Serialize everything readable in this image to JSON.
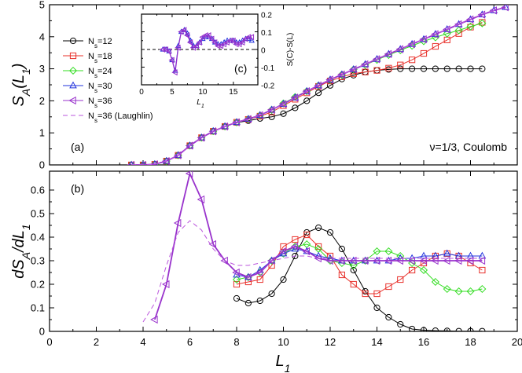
{
  "chart_data": [
    {
      "id": "a",
      "type": "line",
      "panel_label": "(a)",
      "annotation": "ν=1/3, Coulomb",
      "ylabel": "S_A(L_1)",
      "xlim": [
        0,
        20
      ],
      "ylim": [
        0,
        5
      ],
      "xticks": [
        0,
        2,
        4,
        6,
        8,
        10,
        12,
        14,
        16,
        18,
        20
      ],
      "yticks": [
        0,
        1,
        2,
        3,
        4,
        5
      ],
      "legend_position": "top-left",
      "series": [
        {
          "name": "Ns=12",
          "label_main": "N",
          "label_sub": "s",
          "label_tail": "=12",
          "color": "#000000",
          "marker": "circle",
          "x": [
            3.5,
            4,
            4.5,
            5,
            5.5,
            6,
            6.5,
            7,
            7.5,
            8,
            8.5,
            9,
            9.5,
            10,
            10.5,
            11,
            11.5,
            12,
            12.5,
            13,
            13.5,
            14,
            14.5,
            15,
            15.5,
            16,
            16.5,
            17,
            17.5,
            18,
            18.5
          ],
          "y": [
            0,
            0,
            0.02,
            0.12,
            0.3,
            0.6,
            0.85,
            1.05,
            1.2,
            1.32,
            1.38,
            1.45,
            1.5,
            1.6,
            1.78,
            2.0,
            2.25,
            2.48,
            2.68,
            2.8,
            2.9,
            2.95,
            2.98,
            3.0,
            3.0,
            3.0,
            3.0,
            3.0,
            3.0,
            3.0,
            3.0
          ]
        },
        {
          "name": "Ns=18",
          "label_main": "N",
          "label_sub": "s",
          "label_tail": "=18",
          "color": "#e8302a",
          "marker": "square",
          "x": [
            3.5,
            4,
            4.5,
            5,
            5.5,
            6,
            6.5,
            7,
            7.5,
            8,
            8.5,
            9,
            9.5,
            10,
            10.5,
            11,
            11.5,
            12,
            12.5,
            13,
            13.5,
            14,
            14.5,
            15,
            15.5,
            16,
            16.5,
            17,
            17.5,
            18,
            18.5
          ],
          "y": [
            0,
            0,
            0.02,
            0.12,
            0.3,
            0.6,
            0.85,
            1.05,
            1.2,
            1.33,
            1.42,
            1.52,
            1.65,
            1.85,
            2.05,
            2.25,
            2.45,
            2.62,
            2.75,
            2.85,
            2.9,
            2.95,
            3.02,
            3.12,
            3.28,
            3.48,
            3.7,
            3.9,
            4.1,
            4.3,
            4.45
          ]
        },
        {
          "name": "Ns=24",
          "label_main": "N",
          "label_sub": "s",
          "label_tail": "=24",
          "color": "#33dd22",
          "marker": "diamond",
          "x": [
            3.5,
            4,
            4.5,
            5,
            5.5,
            6,
            6.5,
            7,
            7.5,
            8,
            8.5,
            9,
            9.5,
            10,
            10.5,
            11,
            11.5,
            12,
            12.5,
            13,
            13.5,
            14,
            14.5,
            15,
            15.5,
            16,
            16.5,
            17,
            17.5,
            18,
            18.5
          ],
          "y": [
            0,
            0,
            0.02,
            0.12,
            0.3,
            0.6,
            0.85,
            1.05,
            1.2,
            1.33,
            1.43,
            1.55,
            1.72,
            1.92,
            2.12,
            2.3,
            2.48,
            2.65,
            2.82,
            2.98,
            3.12,
            3.28,
            3.43,
            3.58,
            3.72,
            3.86,
            3.98,
            4.1,
            4.2,
            4.32,
            4.42
          ]
        },
        {
          "name": "Ns=30",
          "label_main": "N",
          "label_sub": "s",
          "label_tail": "=30",
          "color": "#2233dd",
          "marker": "triangle-up",
          "x": [
            3.5,
            4,
            4.5,
            5,
            5.5,
            6,
            6.5,
            7,
            7.5,
            8,
            8.5,
            9,
            9.5,
            10,
            10.5,
            11,
            11.5,
            12,
            12.5,
            13,
            13.5,
            14,
            14.5,
            15,
            15.5,
            16,
            16.5,
            17,
            17.5,
            18,
            18.5,
            19,
            19.5
          ],
          "y": [
            0,
            0,
            0.02,
            0.12,
            0.3,
            0.6,
            0.85,
            1.05,
            1.2,
            1.33,
            1.43,
            1.55,
            1.72,
            1.9,
            2.1,
            2.3,
            2.48,
            2.66,
            2.82,
            2.98,
            3.14,
            3.3,
            3.46,
            3.61,
            3.77,
            3.92,
            4.08,
            4.23,
            4.39,
            4.54,
            4.69,
            4.82,
            4.92
          ]
        },
        {
          "name": "Ns=36",
          "label_main": "N",
          "label_sub": "s",
          "label_tail": "=36",
          "color": "#9933cc",
          "marker": "triangle-left",
          "x": [
            3.5,
            4,
            4.5,
            5,
            5.5,
            6,
            6.5,
            7,
            7.5,
            8,
            8.5,
            9,
            9.5,
            10,
            10.5,
            11,
            11.5,
            12,
            12.5,
            13,
            13.5,
            14,
            14.5,
            15,
            15.5,
            16,
            16.5,
            17,
            17.5,
            18,
            18.5,
            19,
            19.5
          ],
          "y": [
            0,
            0,
            0.02,
            0.12,
            0.3,
            0.6,
            0.85,
            1.05,
            1.2,
            1.33,
            1.43,
            1.55,
            1.72,
            1.9,
            2.1,
            2.3,
            2.48,
            2.66,
            2.82,
            2.98,
            3.14,
            3.3,
            3.46,
            3.61,
            3.77,
            3.92,
            4.08,
            4.23,
            4.39,
            4.54,
            4.69,
            4.82,
            4.92
          ]
        },
        {
          "name": "Ns=36 (Laughlin)",
          "label_main": "N",
          "label_sub": "s",
          "label_tail": "=36 (Laughlin)",
          "color": "#bb55dd",
          "marker": "none",
          "dashed": true,
          "x": [
            3.5,
            4,
            4.5,
            5,
            5.5,
            6,
            6.5,
            7,
            7.5,
            8,
            8.5,
            9,
            9.5,
            10,
            10.5,
            11,
            11.5,
            12,
            12.5,
            13,
            13.5,
            14,
            14.5,
            15,
            15.5,
            16,
            16.5,
            17,
            17.5,
            18,
            18.5,
            19,
            19.5
          ],
          "y": [
            0,
            0,
            0.02,
            0.12,
            0.3,
            0.6,
            0.85,
            1.05,
            1.2,
            1.33,
            1.43,
            1.55,
            1.72,
            1.9,
            2.1,
            2.3,
            2.48,
            2.66,
            2.82,
            2.98,
            3.14,
            3.3,
            3.46,
            3.61,
            3.77,
            3.92,
            4.08,
            4.23,
            4.39,
            4.54,
            4.69,
            4.82,
            4.92
          ]
        }
      ]
    },
    {
      "id": "b",
      "type": "line",
      "panel_label": "(b)",
      "xlabel": "L_1",
      "ylabel": "dS_A/dL_1",
      "xlim": [
        0,
        20
      ],
      "ylim": [
        0,
        0.68
      ],
      "xticks": [
        0,
        2,
        4,
        6,
        8,
        10,
        12,
        14,
        16,
        18,
        20
      ],
      "yticks": [
        0,
        0.1,
        0.2,
        0.3,
        0.4,
        0.5,
        0.6
      ],
      "series": [
        {
          "name": "Ns=12",
          "color": "#000000",
          "marker": "circle",
          "x": [
            8,
            8.5,
            9,
            9.5,
            10,
            10.5,
            11,
            11.5,
            12,
            12.5,
            13,
            13.5,
            14,
            14.5,
            15,
            15.5,
            16,
            16.5,
            17,
            17.5,
            18,
            18.5
          ],
          "y": [
            0.14,
            0.12,
            0.13,
            0.16,
            0.22,
            0.32,
            0.42,
            0.44,
            0.42,
            0.35,
            0.26,
            0.17,
            0.1,
            0.06,
            0.03,
            0.01,
            0.005,
            0.003,
            0.002,
            0.001,
            0.001,
            0.001
          ]
        },
        {
          "name": "Ns=18",
          "color": "#e8302a",
          "marker": "square",
          "x": [
            8,
            8.5,
            9,
            9.5,
            10,
            10.5,
            11,
            11.5,
            12,
            12.5,
            13,
            13.5,
            14,
            14.5,
            15,
            15.5,
            16,
            16.5,
            17,
            17.5,
            18,
            18.5
          ],
          "y": [
            0.2,
            0.21,
            0.22,
            0.28,
            0.36,
            0.39,
            0.41,
            0.36,
            0.32,
            0.24,
            0.2,
            0.16,
            0.16,
            0.19,
            0.22,
            0.26,
            0.29,
            0.32,
            0.33,
            0.32,
            0.29,
            0.26
          ]
        },
        {
          "name": "Ns=24",
          "color": "#33dd22",
          "marker": "diamond",
          "x": [
            8,
            8.5,
            9,
            9.5,
            10,
            10.5,
            11,
            11.5,
            12,
            12.5,
            13,
            13.5,
            14,
            14.5,
            15,
            15.5,
            16,
            16.5,
            17,
            17.5,
            18,
            18.5
          ],
          "y": [
            0.22,
            0.23,
            0.25,
            0.3,
            0.33,
            0.36,
            0.37,
            0.35,
            0.3,
            0.29,
            0.28,
            0.3,
            0.34,
            0.34,
            0.32,
            0.29,
            0.26,
            0.21,
            0.18,
            0.17,
            0.17,
            0.18
          ]
        },
        {
          "name": "Ns=30",
          "color": "#2233dd",
          "marker": "triangle-up",
          "x": [
            8,
            8.5,
            9,
            9.5,
            10,
            10.5,
            11,
            11.5,
            12,
            12.5,
            13,
            13.5,
            14,
            14.5,
            15,
            15.5,
            16,
            16.5,
            17,
            17.5,
            18,
            18.5
          ],
          "y": [
            0.24,
            0.23,
            0.26,
            0.3,
            0.33,
            0.35,
            0.34,
            0.32,
            0.31,
            0.3,
            0.3,
            0.3,
            0.3,
            0.3,
            0.31,
            0.31,
            0.32,
            0.32,
            0.33,
            0.32,
            0.32,
            0.32
          ]
        },
        {
          "name": "Ns=36",
          "color": "#9933cc",
          "marker": "triangle-left",
          "x": [
            4.5,
            5,
            5.5,
            6,
            6.5,
            7,
            7.5,
            8,
            8.5,
            9,
            9.5,
            10,
            10.5,
            11,
            11.5,
            12,
            12.5,
            13,
            13.5,
            14,
            14.5,
            15,
            15.5,
            16,
            16.5,
            17,
            17.5,
            18,
            18.5
          ],
          "y": [
            0.05,
            0.2,
            0.46,
            0.67,
            0.56,
            0.37,
            0.3,
            0.25,
            0.23,
            0.25,
            0.3,
            0.34,
            0.36,
            0.34,
            0.31,
            0.3,
            0.3,
            0.3,
            0.3,
            0.3,
            0.3,
            0.3,
            0.3,
            0.3,
            0.3,
            0.3,
            0.3,
            0.3,
            0.3
          ]
        },
        {
          "name": "Ns=36 (Laughlin)",
          "color": "#bb55dd",
          "marker": "none",
          "dashed": true,
          "x": [
            4,
            4.5,
            5,
            5.5,
            6,
            6.5,
            7,
            7.5,
            8,
            8.5,
            9,
            9.5,
            10,
            10.5,
            11,
            11.5,
            12,
            12.5,
            13,
            13.5,
            14,
            14.5,
            15,
            15.5,
            16,
            16.5,
            17,
            17.5,
            18,
            18.5
          ],
          "y": [
            0.04,
            0.12,
            0.28,
            0.42,
            0.47,
            0.43,
            0.35,
            0.3,
            0.28,
            0.28,
            0.29,
            0.3,
            0.31,
            0.32,
            0.32,
            0.31,
            0.31,
            0.31,
            0.31,
            0.31,
            0.31,
            0.31,
            0.31,
            0.31,
            0.31,
            0.31,
            0.31,
            0.31,
            0.31,
            0.31
          ]
        }
      ]
    },
    {
      "id": "c",
      "type": "line",
      "panel_label": "(c)",
      "xlabel": "L_1",
      "ylabel": "S(C)-S(L)",
      "xlim": [
        0,
        19
      ],
      "ylim": [
        -0.2,
        0.2
      ],
      "xticks": [
        0,
        5,
        10,
        15
      ],
      "yticks": [
        -0.2,
        -0.1,
        0,
        0.1,
        0.2
      ],
      "zero_line": true,
      "series": [
        {
          "name": "Ns=30",
          "color": "#2233dd",
          "marker": "triangle-up",
          "x": [
            3.5,
            4,
            4.5,
            5,
            5.5,
            6,
            6.5,
            7,
            7.5,
            8,
            8.5,
            9,
            9.5,
            10,
            10.5,
            11,
            11.5,
            12,
            12.5,
            13,
            13.5,
            14,
            14.5,
            15,
            15.5,
            16,
            16.5,
            17,
            17.5,
            18
          ],
          "y": [
            0,
            0,
            -0.01,
            -0.06,
            -0.12,
            0.02,
            0.1,
            0.11,
            0.09,
            0.05,
            0.02,
            0.02,
            0.04,
            0.06,
            0.07,
            0.07,
            0.06,
            0.04,
            0.03,
            0.03,
            0.04,
            0.05,
            0.05,
            0.05,
            0.04,
            0.04,
            0.05,
            0.06,
            0.06,
            0.05
          ]
        },
        {
          "name": "Ns=36",
          "color": "#9933cc",
          "marker": "triangle-left",
          "x": [
            3.5,
            4,
            4.5,
            5,
            5.5,
            6,
            6.5,
            7,
            7.5,
            8,
            8.5,
            9,
            9.5,
            10,
            10.5,
            11,
            11.5,
            12,
            12.5,
            13,
            13.5,
            14,
            14.5,
            15,
            15.5,
            16,
            16.5,
            17,
            17.5,
            18
          ],
          "y": [
            0,
            0,
            -0.01,
            -0.06,
            -0.13,
            0.01,
            0.1,
            0.11,
            0.08,
            0.04,
            0.01,
            0.02,
            0.04,
            0.07,
            0.08,
            0.08,
            0.06,
            0.04,
            0.02,
            0.02,
            0.03,
            0.04,
            0.05,
            0.05,
            0.03,
            0.03,
            0.04,
            0.06,
            0.07,
            0.07
          ]
        }
      ]
    }
  ]
}
